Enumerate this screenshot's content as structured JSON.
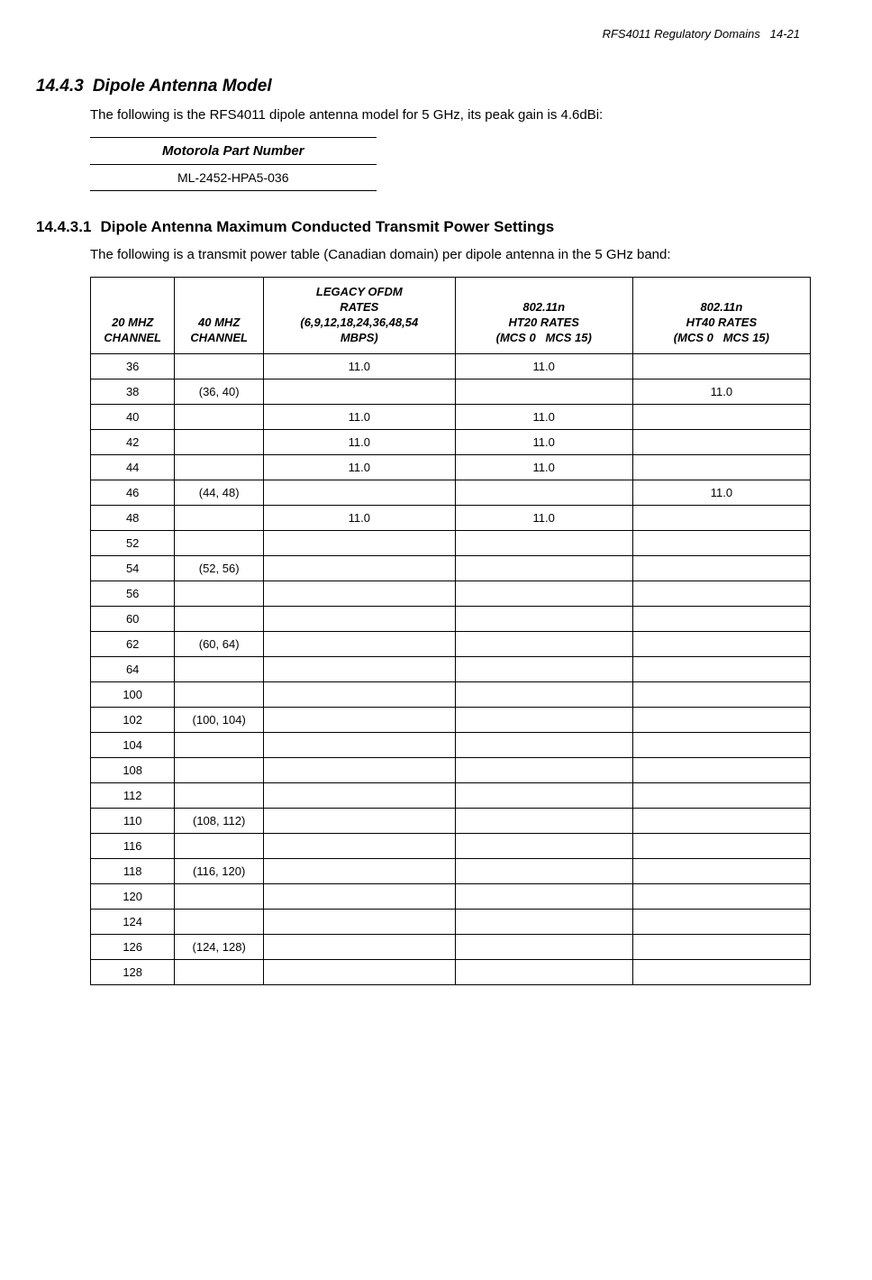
{
  "header": {
    "title": "RFS4011 Regulatory Domains",
    "page": "14-21"
  },
  "section": {
    "number": "14.4.3",
    "title": "Dipole Antenna Model",
    "text": "The following is the RFS4011 dipole antenna model for 5 GHz, its peak gain is 4.6dBi:"
  },
  "partTable": {
    "header": "Motorola Part Number",
    "value": "ML-2452-HPA5-036"
  },
  "subsection": {
    "number": "14.4.3.1",
    "title": "Dipole Antenna Maximum Conducted Transmit Power Settings",
    "text": "The following is a transmit power table (Canadian domain) per dipole antenna in the 5 GHz band:"
  },
  "dataTable": {
    "columns": [
      "20 MHZ CHANNEL",
      "40 MHZ CHANNEL",
      "LEGACY OFDM RATES (6,9,12,18,24,36,48,54 MBPS)",
      "802.11n HT20 RATES (MCS 0   MCS 15)",
      "802.11n HT40 RATES (MCS 0   MCS 15)"
    ],
    "rows": [
      [
        "36",
        "",
        "11.0",
        "11.0",
        ""
      ],
      [
        "38",
        "(36, 40)",
        "",
        "",
        "11.0"
      ],
      [
        "40",
        "",
        "11.0",
        "11.0",
        ""
      ],
      [
        "42",
        "",
        "11.0",
        "11.0",
        ""
      ],
      [
        "44",
        "",
        "11.0",
        "11.0",
        ""
      ],
      [
        "46",
        "(44, 48)",
        "",
        "",
        "11.0"
      ],
      [
        "48",
        "",
        "11.0",
        "11.0",
        ""
      ],
      [
        "52",
        "",
        "",
        "",
        ""
      ],
      [
        "54",
        "(52, 56)",
        "",
        "",
        ""
      ],
      [
        "56",
        "",
        "",
        "",
        ""
      ],
      [
        "60",
        "",
        "",
        "",
        ""
      ],
      [
        "62",
        "(60, 64)",
        "",
        "",
        ""
      ],
      [
        "64",
        "",
        "",
        "",
        ""
      ],
      [
        "100",
        "",
        "",
        "",
        ""
      ],
      [
        "102",
        "(100, 104)",
        "",
        "",
        ""
      ],
      [
        "104",
        "",
        "",
        "",
        ""
      ],
      [
        "108",
        "",
        "",
        "",
        ""
      ],
      [
        "112",
        "",
        "",
        "",
        ""
      ],
      [
        "110",
        "(108, 112)",
        "",
        "",
        ""
      ],
      [
        "116",
        "",
        "",
        "",
        ""
      ],
      [
        "118",
        "(116, 120)",
        "",
        "",
        ""
      ],
      [
        "120",
        "",
        "",
        "",
        ""
      ],
      [
        "124",
        "",
        "",
        "",
        ""
      ],
      [
        "126",
        "(124, 128)",
        "",
        "",
        ""
      ],
      [
        "128",
        "",
        "",
        "",
        ""
      ]
    ]
  }
}
